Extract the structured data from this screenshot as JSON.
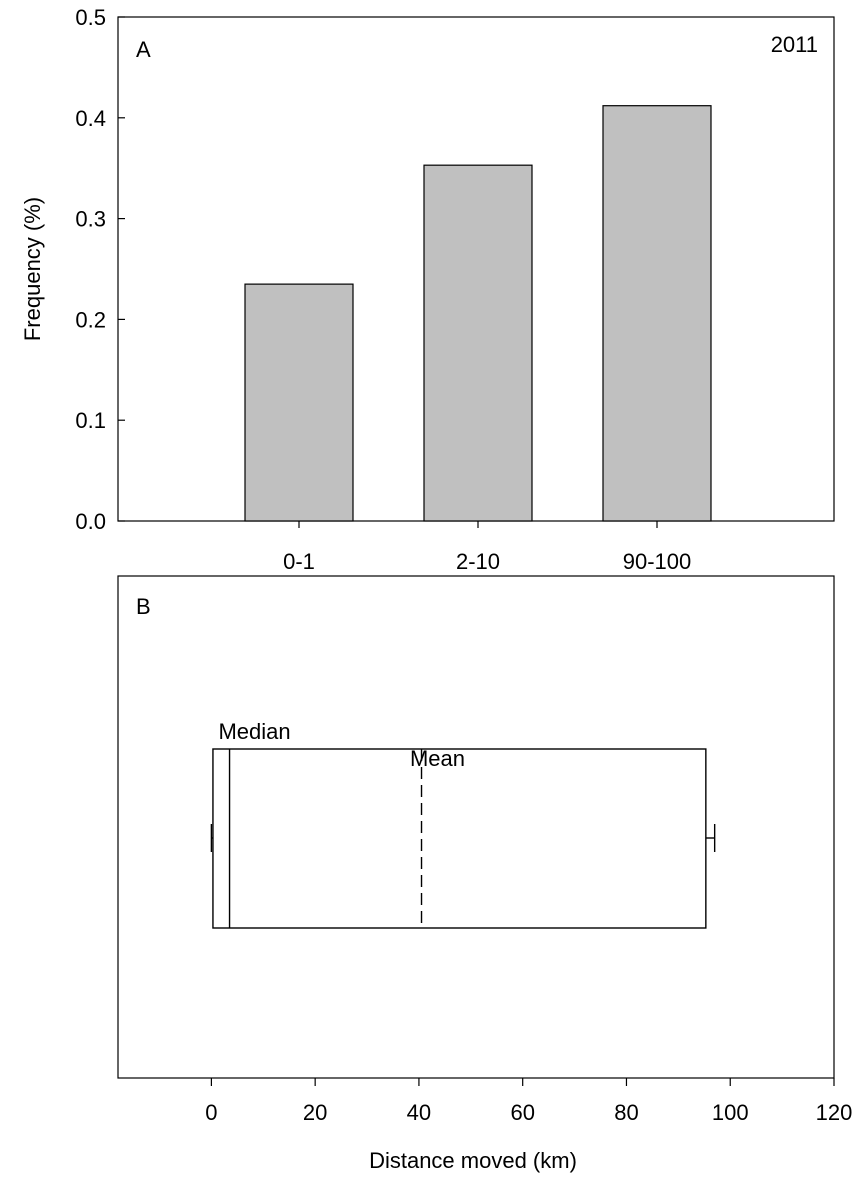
{
  "chart_data": [
    {
      "panel": "A",
      "type": "bar",
      "annotation": "2011",
      "ylabel": "Frequency (%)",
      "xlabel": "",
      "categories": [
        "0-1",
        "2-10",
        "90-100"
      ],
      "values": [
        0.235,
        0.353,
        0.412
      ],
      "ylim": [
        0.0,
        0.5
      ],
      "yticks": [
        "0.0",
        "0.1",
        "0.2",
        "0.3",
        "0.4",
        "0.5"
      ],
      "bar_color": "#c0c0c0",
      "grid": false
    },
    {
      "panel": "B",
      "type": "box",
      "xlabel": "Distance moved (km)",
      "xlim": [
        -18,
        120
      ],
      "xticks": [
        "0",
        "20",
        "40",
        "60",
        "80",
        "100",
        "120"
      ],
      "stats": {
        "min": 0,
        "q1": 0.3,
        "median": 3.5,
        "mean": 40.5,
        "q3": 95.3,
        "max": 97
      },
      "annotations": {
        "median_label": "Median",
        "mean_label": "Mean"
      },
      "grid": false
    }
  ]
}
